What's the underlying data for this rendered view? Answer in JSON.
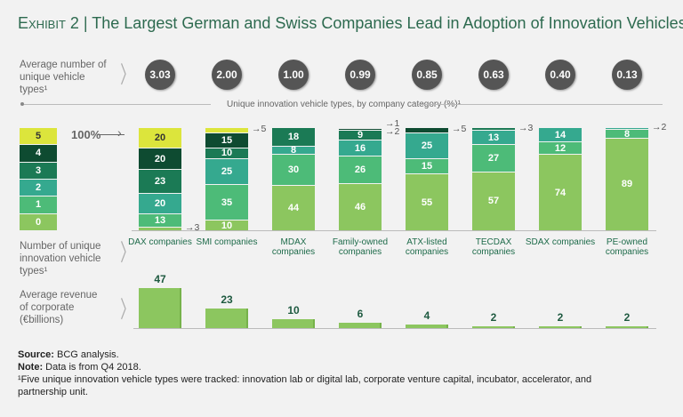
{
  "title": {
    "exhibit": "Exhibit 2",
    "separator": " | ",
    "text": "The Largest German and Swiss Companies Lead in Adoption of Innovation Vehicles"
  },
  "row_labels": {
    "avg_types": "Average number of unique vehicle types¹",
    "num_types": "Number of unique innovation vehicle types¹",
    "revenue": "Average revenue of corporate (€billions)"
  },
  "hundred_label": "100%",
  "chart_data": {
    "type": "bar",
    "title": "Unique innovation vehicle types, by company category (%)¹",
    "categories": [
      "DAX companies",
      "SMI companies",
      "MDAX companies",
      "Family-owned companies",
      "ATX-listed companies",
      "TECDAX companies",
      "SDAX companies",
      "PE-owned companies"
    ],
    "avg_unique_vehicle_types": [
      "3.03",
      "2.00",
      "1.00",
      "0.99",
      "0.85",
      "0.63",
      "0.40",
      "0.13"
    ],
    "legend": [
      "0",
      "1",
      "2",
      "3",
      "4",
      "5"
    ],
    "colors": [
      "#8cc65f",
      "#4dbb78",
      "#35a98f",
      "#1b7a55",
      "#0e4b31",
      "#dce53c"
    ],
    "series": [
      {
        "name": "0",
        "values": [
          3,
          10,
          44,
          46,
          55,
          57,
          74,
          89
        ]
      },
      {
        "name": "1",
        "values": [
          13,
          35,
          30,
          26,
          15,
          27,
          12,
          8
        ]
      },
      {
        "name": "2",
        "values": [
          20,
          25,
          8,
          16,
          25,
          13,
          14,
          2
        ]
      },
      {
        "name": "3",
        "values": [
          23,
          10,
          18,
          9,
          0,
          3,
          0,
          0
        ]
      },
      {
        "name": "4",
        "values": [
          20,
          15,
          0,
          2,
          5,
          0,
          0,
          0
        ]
      },
      {
        "name": "5",
        "values": [
          20,
          5,
          0,
          1,
          0,
          0,
          0,
          0
        ]
      }
    ],
    "outside_labels": [
      {
        "cat": 0,
        "series": 0,
        "text": "3"
      },
      {
        "cat": 1,
        "series": 5,
        "text": "5"
      },
      {
        "cat": 3,
        "series": 5,
        "text": "1"
      },
      {
        "cat": 3,
        "series": 4,
        "text": "2"
      },
      {
        "cat": 4,
        "series": 4,
        "text": "5"
      },
      {
        "cat": 5,
        "series": 3,
        "text": "3"
      },
      {
        "cat": 7,
        "series": 2,
        "text": "2"
      }
    ],
    "ylim": [
      0,
      100
    ],
    "avg_revenue_billions_eur": [
      47,
      23,
      10,
      6,
      4,
      2,
      2,
      2
    ]
  },
  "footer": {
    "source_label": "Source:",
    "source": " BCG analysis.",
    "note_label": "Note:",
    "note": " Data is from Q4 2018.",
    "footnote": "¹Five unique innovation vehicle types were tracked: innovation lab or digital lab, corporate venture capital, incubator, accelerator, and partnership unit."
  }
}
